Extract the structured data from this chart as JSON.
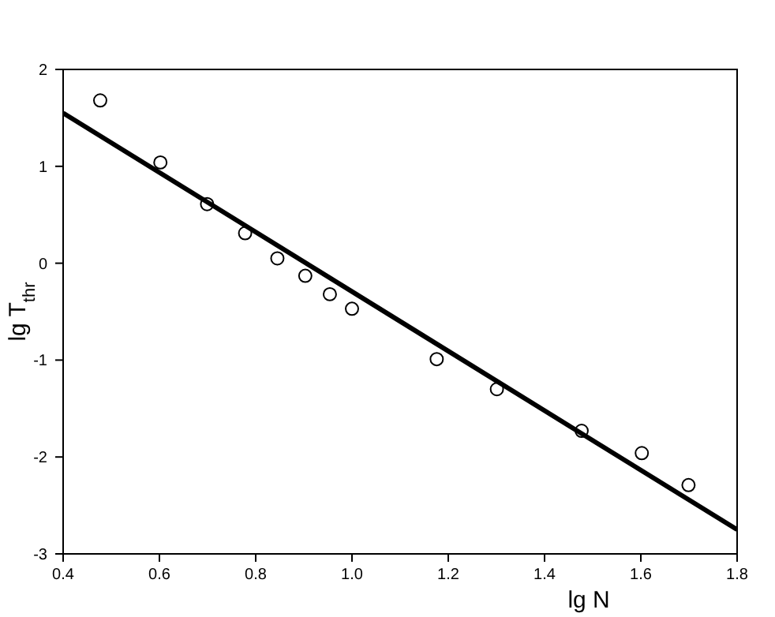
{
  "chart_data": {
    "type": "scatter",
    "xlabel": "lg N",
    "ylabel": "lg T$_{thr}$",
    "xlim": [
      0.4,
      1.8
    ],
    "ylim": [
      -3,
      2
    ],
    "xticks": [
      0.4,
      0.6,
      0.8,
      {
        "value": 1,
        "label": "1.0"
      },
      1.2,
      1.4,
      1.6,
      1.8
    ],
    "yticks": [
      -3,
      -2,
      -1,
      0,
      1,
      2
    ],
    "grid": false,
    "series": [
      {
        "marker": "circle",
        "color": "#000000",
        "x": [
          0.477,
          0.602,
          0.699,
          0.778,
          0.845,
          0.903,
          0.954,
          1.0,
          1.176,
          1.301,
          1.477,
          1.602,
          1.699
        ],
        "values": [
          1.68,
          1.04,
          0.61,
          0.31,
          0.05,
          -0.13,
          -0.32,
          -0.47,
          -0.99,
          -1.3,
          -1.73,
          -1.96,
          -2.29
        ]
      },
      {
        "type": "line",
        "marker": "none",
        "color": "#000000",
        "x": [
          0.4,
          1.8
        ],
        "values": [
          1.55,
          -2.75
        ]
      }
    ]
  }
}
